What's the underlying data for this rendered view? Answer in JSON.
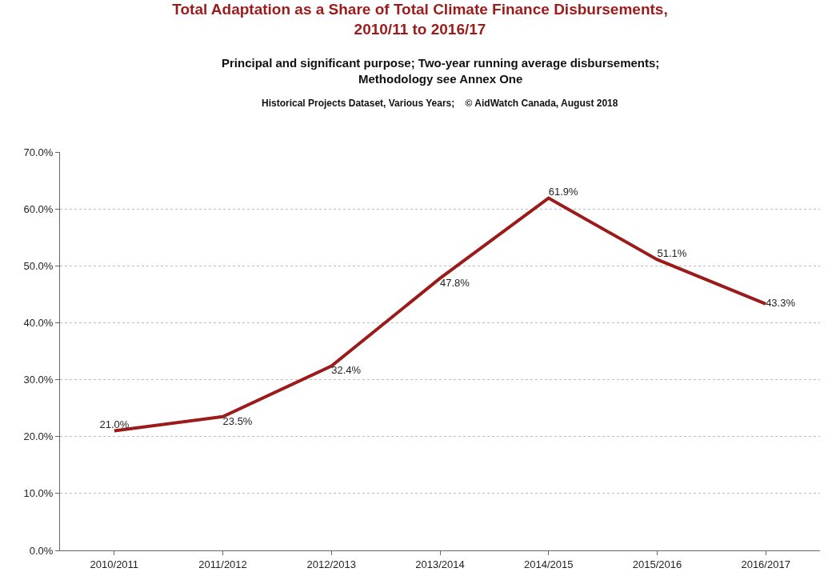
{
  "chart_data": {
    "type": "line",
    "title": "Total Adaptation as a Share of Total Climate Finance Disbursements,\n2010/11 to 2016/17",
    "subtitle": "Principal and significant purpose; Two-year running average disbursements;\nMethodology see Annex One",
    "annotations": [
      "Historical Projects Dataset, Various Years;    © AidWatch Canada, August 2018"
    ],
    "categories": [
      "2010/2011",
      "2011/2012",
      "2012/2013",
      "2013/2014",
      "2014/2015",
      "2015/2016",
      "2016/2017"
    ],
    "series": [
      {
        "color": "#9b1b1b",
        "values": [
          21.0,
          23.5,
          32.4,
          47.8,
          61.9,
          51.1,
          43.3
        ],
        "value_labels": [
          "21.0%",
          "23.5%",
          "32.4%",
          "47.8%",
          "61.9%",
          "51.1%",
          "43.3%"
        ]
      }
    ],
    "ylim": [
      0,
      70
    ],
    "yticks": [
      {
        "value": 0,
        "label": "0.0%"
      },
      {
        "value": 10,
        "label": "10.0%"
      },
      {
        "value": 20,
        "label": "20.0%"
      },
      {
        "value": 30,
        "label": "30.0%"
      },
      {
        "value": 40,
        "label": "40.0%"
      },
      {
        "value": 50,
        "label": "50.0%"
      },
      {
        "value": 60,
        "label": "60.0%"
      },
      {
        "value": 70,
        "label": "70.0%"
      }
    ],
    "grid": "y",
    "marker": "none",
    "line_style": "solid"
  }
}
